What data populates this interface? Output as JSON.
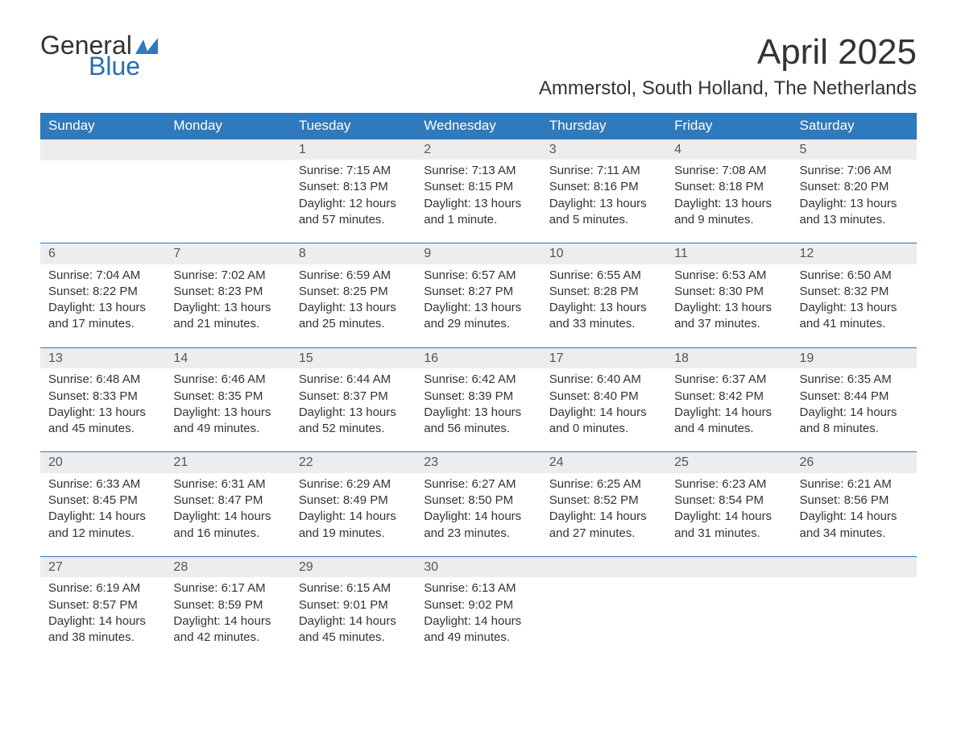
{
  "brand": {
    "word1": "General",
    "word2": "Blue",
    "accent": "#2a6db0",
    "shape_color": "#2f79bd"
  },
  "title": "April 2025",
  "location": "Ammerstol, South Holland, The Netherlands",
  "header_bg": "#2f79bd",
  "daybar_bg": "#ededed",
  "text_color": "#333333",
  "columns": [
    "Sunday",
    "Monday",
    "Tuesday",
    "Wednesday",
    "Thursday",
    "Friday",
    "Saturday"
  ],
  "weeks": [
    [
      null,
      null,
      {
        "d": "1",
        "sr": "7:15 AM",
        "ss": "8:13 PM",
        "dl": "12 hours and 57 minutes."
      },
      {
        "d": "2",
        "sr": "7:13 AM",
        "ss": "8:15 PM",
        "dl": "13 hours and 1 minute."
      },
      {
        "d": "3",
        "sr": "7:11 AM",
        "ss": "8:16 PM",
        "dl": "13 hours and 5 minutes."
      },
      {
        "d": "4",
        "sr": "7:08 AM",
        "ss": "8:18 PM",
        "dl": "13 hours and 9 minutes."
      },
      {
        "d": "5",
        "sr": "7:06 AM",
        "ss": "8:20 PM",
        "dl": "13 hours and 13 minutes."
      }
    ],
    [
      {
        "d": "6",
        "sr": "7:04 AM",
        "ss": "8:22 PM",
        "dl": "13 hours and 17 minutes."
      },
      {
        "d": "7",
        "sr": "7:02 AM",
        "ss": "8:23 PM",
        "dl": "13 hours and 21 minutes."
      },
      {
        "d": "8",
        "sr": "6:59 AM",
        "ss": "8:25 PM",
        "dl": "13 hours and 25 minutes."
      },
      {
        "d": "9",
        "sr": "6:57 AM",
        "ss": "8:27 PM",
        "dl": "13 hours and 29 minutes."
      },
      {
        "d": "10",
        "sr": "6:55 AM",
        "ss": "8:28 PM",
        "dl": "13 hours and 33 minutes."
      },
      {
        "d": "11",
        "sr": "6:53 AM",
        "ss": "8:30 PM",
        "dl": "13 hours and 37 minutes."
      },
      {
        "d": "12",
        "sr": "6:50 AM",
        "ss": "8:32 PM",
        "dl": "13 hours and 41 minutes."
      }
    ],
    [
      {
        "d": "13",
        "sr": "6:48 AM",
        "ss": "8:33 PM",
        "dl": "13 hours and 45 minutes."
      },
      {
        "d": "14",
        "sr": "6:46 AM",
        "ss": "8:35 PM",
        "dl": "13 hours and 49 minutes."
      },
      {
        "d": "15",
        "sr": "6:44 AM",
        "ss": "8:37 PM",
        "dl": "13 hours and 52 minutes."
      },
      {
        "d": "16",
        "sr": "6:42 AM",
        "ss": "8:39 PM",
        "dl": "13 hours and 56 minutes."
      },
      {
        "d": "17",
        "sr": "6:40 AM",
        "ss": "8:40 PM",
        "dl": "14 hours and 0 minutes."
      },
      {
        "d": "18",
        "sr": "6:37 AM",
        "ss": "8:42 PM",
        "dl": "14 hours and 4 minutes."
      },
      {
        "d": "19",
        "sr": "6:35 AM",
        "ss": "8:44 PM",
        "dl": "14 hours and 8 minutes."
      }
    ],
    [
      {
        "d": "20",
        "sr": "6:33 AM",
        "ss": "8:45 PM",
        "dl": "14 hours and 12 minutes."
      },
      {
        "d": "21",
        "sr": "6:31 AM",
        "ss": "8:47 PM",
        "dl": "14 hours and 16 minutes."
      },
      {
        "d": "22",
        "sr": "6:29 AM",
        "ss": "8:49 PM",
        "dl": "14 hours and 19 minutes."
      },
      {
        "d": "23",
        "sr": "6:27 AM",
        "ss": "8:50 PM",
        "dl": "14 hours and 23 minutes."
      },
      {
        "d": "24",
        "sr": "6:25 AM",
        "ss": "8:52 PM",
        "dl": "14 hours and 27 minutes."
      },
      {
        "d": "25",
        "sr": "6:23 AM",
        "ss": "8:54 PM",
        "dl": "14 hours and 31 minutes."
      },
      {
        "d": "26",
        "sr": "6:21 AM",
        "ss": "8:56 PM",
        "dl": "14 hours and 34 minutes."
      }
    ],
    [
      {
        "d": "27",
        "sr": "6:19 AM",
        "ss": "8:57 PM",
        "dl": "14 hours and 38 minutes."
      },
      {
        "d": "28",
        "sr": "6:17 AM",
        "ss": "8:59 PM",
        "dl": "14 hours and 42 minutes."
      },
      {
        "d": "29",
        "sr": "6:15 AM",
        "ss": "9:01 PM",
        "dl": "14 hours and 45 minutes."
      },
      {
        "d": "30",
        "sr": "6:13 AM",
        "ss": "9:02 PM",
        "dl": "14 hours and 49 minutes."
      },
      null,
      null,
      null
    ]
  ],
  "labels": {
    "sunrise": "Sunrise: ",
    "sunset": "Sunset: ",
    "daylight": "Daylight: "
  }
}
